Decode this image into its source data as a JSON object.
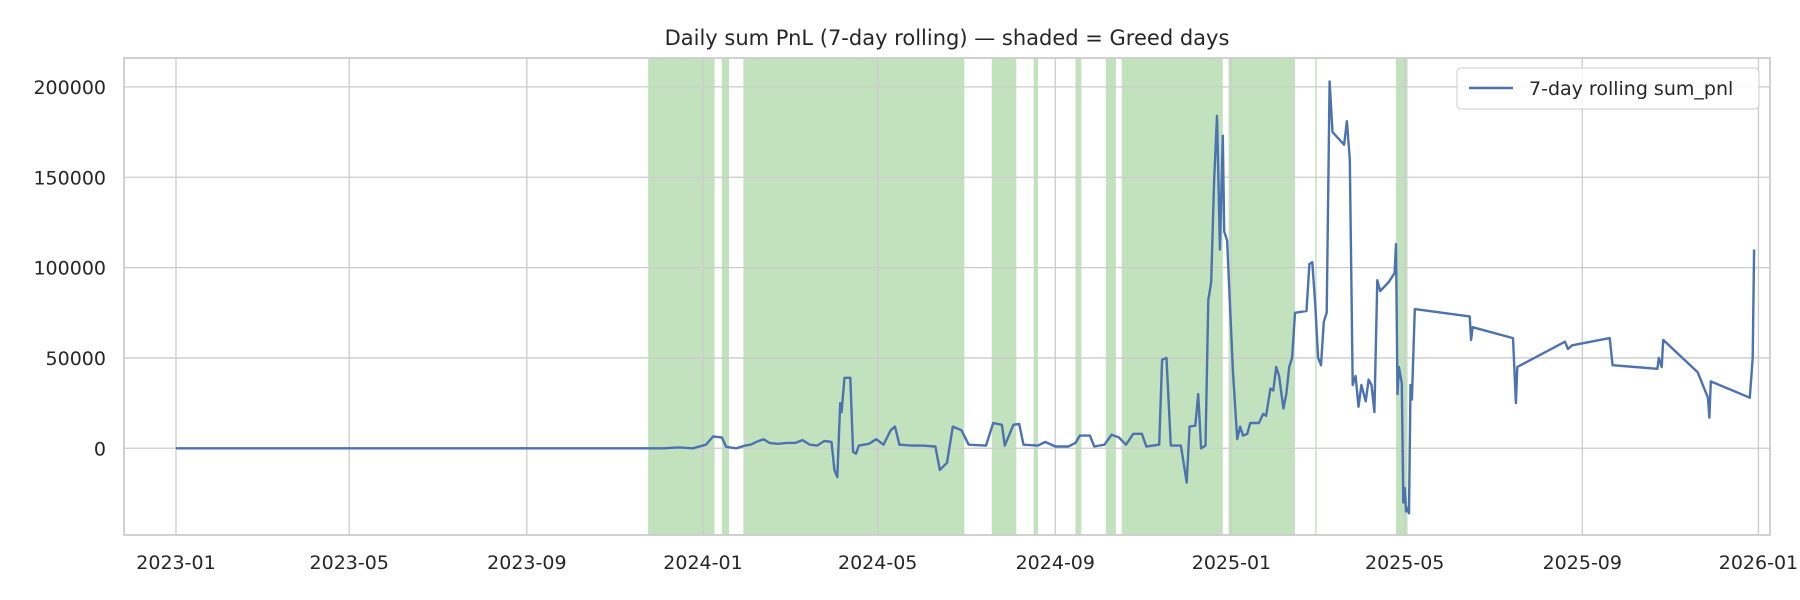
{
  "chart_data": {
    "type": "line",
    "title": "Daily sum PnL (7-day rolling) — shaded = Greed days",
    "xlabel": "",
    "ylabel": "",
    "xlim": [
      "2022-11-26",
      "2026-01-09"
    ],
    "ylim": [
      -48000,
      216000
    ],
    "x_ticks": [
      "2023-01",
      "2023-05",
      "2023-09",
      "2024-01",
      "2024-05",
      "2024-09",
      "2025-01",
      "2025-05",
      "2025-09",
      "2026-01"
    ],
    "y_ticks": [
      0,
      50000,
      100000,
      150000,
      200000
    ],
    "y_tick_labels": [
      "0",
      "50000",
      "100000",
      "150000",
      "200000"
    ],
    "grid": true,
    "legend_position": "top-right",
    "colors": {
      "line": "#4c72b0",
      "greed_shade": "#a8d5a2",
      "grid": "#cccccc",
      "spine": "#cccccc",
      "text": "#262626"
    },
    "series": [
      {
        "name": "7-day rolling sum_pnl",
        "points": [
          [
            "2023-01-01",
            0
          ],
          [
            "2023-06-01",
            0
          ],
          [
            "2023-09-15",
            0
          ],
          [
            "2023-12-05",
            0
          ],
          [
            "2023-12-15",
            500
          ],
          [
            "2023-12-25",
            0
          ],
          [
            "2024-01-03",
            2000
          ],
          [
            "2024-01-08",
            6500
          ],
          [
            "2024-01-14",
            6000
          ],
          [
            "2024-01-17",
            800
          ],
          [
            "2024-01-24",
            0
          ],
          [
            "2024-01-30",
            1500
          ],
          [
            "2024-02-03",
            2000
          ],
          [
            "2024-02-07",
            3500
          ],
          [
            "2024-02-12",
            5000
          ],
          [
            "2024-02-16",
            3000
          ],
          [
            "2024-02-22",
            2500
          ],
          [
            "2024-02-28",
            3000
          ],
          [
            "2024-03-05",
            3000
          ],
          [
            "2024-03-10",
            4500
          ],
          [
            "2024-03-15",
            2000
          ],
          [
            "2024-03-20",
            1500
          ],
          [
            "2024-03-25",
            4000
          ],
          [
            "2024-03-30",
            3500
          ],
          [
            "2024-04-01",
            -12000
          ],
          [
            "2024-04-03",
            -16000
          ],
          [
            "2024-04-05",
            25000
          ],
          [
            "2024-04-06",
            20000
          ],
          [
            "2024-04-08",
            39000
          ],
          [
            "2024-04-12",
            39000
          ],
          [
            "2024-04-14",
            -2000
          ],
          [
            "2024-04-16",
            -3000
          ],
          [
            "2024-04-18",
            1500
          ],
          [
            "2024-04-25",
            2500
          ],
          [
            "2024-04-30",
            5000
          ],
          [
            "2024-05-05",
            2000
          ],
          [
            "2024-05-10",
            10000
          ],
          [
            "2024-05-13",
            12000
          ],
          [
            "2024-05-16",
            2000
          ],
          [
            "2024-05-25",
            1500
          ],
          [
            "2024-06-01",
            1500
          ],
          [
            "2024-06-10",
            1000
          ],
          [
            "2024-06-13",
            -12000
          ],
          [
            "2024-06-18",
            -8000
          ],
          [
            "2024-06-22",
            12000
          ],
          [
            "2024-06-28",
            10000
          ],
          [
            "2024-07-03",
            2000
          ],
          [
            "2024-07-15",
            1500
          ],
          [
            "2024-07-20",
            14000
          ],
          [
            "2024-07-26",
            13000
          ],
          [
            "2024-07-28",
            1500
          ],
          [
            "2024-08-03",
            13000
          ],
          [
            "2024-08-07",
            13500
          ],
          [
            "2024-08-10",
            2000
          ],
          [
            "2024-08-20",
            1500
          ],
          [
            "2024-08-25",
            3500
          ],
          [
            "2024-09-01",
            1000
          ],
          [
            "2024-09-10",
            1000
          ],
          [
            "2024-09-15",
            3000
          ],
          [
            "2024-09-18",
            7000
          ],
          [
            "2024-09-25",
            7000
          ],
          [
            "2024-09-28",
            1000
          ],
          [
            "2024-10-05",
            2000
          ],
          [
            "2024-10-10",
            7500
          ],
          [
            "2024-10-15",
            6000
          ],
          [
            "2024-10-20",
            2000
          ],
          [
            "2024-10-25",
            8000
          ],
          [
            "2024-10-31",
            8000
          ],
          [
            "2024-11-03",
            1000
          ],
          [
            "2024-11-12",
            2000
          ],
          [
            "2024-11-14",
            49000
          ],
          [
            "2024-11-17",
            50000
          ],
          [
            "2024-11-20",
            1500
          ],
          [
            "2024-11-27",
            1500
          ],
          [
            "2024-12-01",
            -19000
          ],
          [
            "2024-12-03",
            12000
          ],
          [
            "2024-12-07",
            12500
          ],
          [
            "2024-12-09",
            30000
          ],
          [
            "2024-12-11",
            0
          ],
          [
            "2024-12-14",
            1500
          ],
          [
            "2024-12-16",
            82000
          ],
          [
            "2024-12-18",
            92000
          ],
          [
            "2024-12-20",
            148000
          ],
          [
            "2024-12-22",
            184000
          ],
          [
            "2024-12-23",
            150000
          ],
          [
            "2024-12-24",
            110000
          ],
          [
            "2024-12-25",
            140000
          ],
          [
            "2024-12-26",
            173000
          ],
          [
            "2024-12-27",
            120000
          ],
          [
            "2024-12-29",
            115000
          ],
          [
            "2025-01-02",
            43000
          ],
          [
            "2025-01-05",
            5000
          ],
          [
            "2025-01-07",
            12000
          ],
          [
            "2025-01-09",
            7000
          ],
          [
            "2025-01-12",
            8000
          ],
          [
            "2025-01-14",
            14000
          ],
          [
            "2025-01-20",
            14000
          ],
          [
            "2025-01-23",
            19000
          ],
          [
            "2025-01-25",
            18000
          ],
          [
            "2025-01-28",
            33000
          ],
          [
            "2025-01-30",
            32000
          ],
          [
            "2025-02-01",
            45000
          ],
          [
            "2025-02-03",
            40000
          ],
          [
            "2025-02-06",
            22000
          ],
          [
            "2025-02-08",
            30000
          ],
          [
            "2025-02-10",
            45000
          ],
          [
            "2025-02-12",
            50000
          ],
          [
            "2025-02-14",
            75000
          ],
          [
            "2025-02-22",
            76000
          ],
          [
            "2025-02-24",
            102000
          ],
          [
            "2025-02-26",
            103000
          ],
          [
            "2025-02-28",
            80000
          ],
          [
            "2025-03-02",
            50000
          ],
          [
            "2025-03-04",
            46000
          ],
          [
            "2025-03-06",
            70000
          ],
          [
            "2025-03-08",
            75000
          ],
          [
            "2025-03-10",
            203000
          ],
          [
            "2025-03-12",
            175000
          ],
          [
            "2025-03-20",
            168000
          ],
          [
            "2025-03-22",
            181000
          ],
          [
            "2025-03-24",
            160000
          ],
          [
            "2025-03-26",
            35000
          ],
          [
            "2025-03-28",
            40000
          ],
          [
            "2025-03-30",
            23000
          ],
          [
            "2025-04-01",
            35000
          ],
          [
            "2025-04-04",
            26000
          ],
          [
            "2025-04-06",
            38000
          ],
          [
            "2025-04-08",
            35000
          ],
          [
            "2025-04-10",
            20000
          ],
          [
            "2025-04-12",
            93000
          ],
          [
            "2025-04-14",
            87000
          ],
          [
            "2025-04-20",
            92000
          ],
          [
            "2025-04-24",
            97000
          ],
          [
            "2025-04-25",
            113000
          ],
          [
            "2025-04-26",
            30000
          ],
          [
            "2025-04-27",
            45000
          ],
          [
            "2025-04-29",
            36000
          ],
          [
            "2025-04-30",
            -30000
          ],
          [
            "2025-05-01",
            -22000
          ],
          [
            "2025-05-02",
            -35000
          ],
          [
            "2025-05-03",
            -33000
          ],
          [
            "2025-05-04",
            -36000
          ],
          [
            "2025-05-05",
            35000
          ],
          [
            "2025-05-06",
            27000
          ],
          [
            "2025-05-08",
            77000
          ],
          [
            "2025-06-15",
            73000
          ],
          [
            "2025-06-16",
            60000
          ],
          [
            "2025-06-17",
            67000
          ],
          [
            "2025-07-15",
            61000
          ],
          [
            "2025-07-17",
            25000
          ],
          [
            "2025-07-18",
            45000
          ],
          [
            "2025-08-20",
            59000
          ],
          [
            "2025-08-22",
            55000
          ],
          [
            "2025-08-25",
            57000
          ],
          [
            "2025-09-20",
            61000
          ],
          [
            "2025-09-22",
            46000
          ],
          [
            "2025-10-23",
            44000
          ],
          [
            "2025-10-24",
            50000
          ],
          [
            "2025-10-26",
            45000
          ],
          [
            "2025-10-27",
            60000
          ],
          [
            "2025-11-20",
            42000
          ],
          [
            "2025-11-27",
            28000
          ],
          [
            "2025-11-28",
            17000
          ],
          [
            "2025-11-29",
            37000
          ],
          [
            "2025-12-26",
            28000
          ],
          [
            "2025-12-28",
            50000
          ],
          [
            "2025-12-29",
            110000
          ]
        ]
      }
    ],
    "shaded_regions_label": "Greed days",
    "shaded_regions": [
      [
        "2023-11-24",
        "2024-01-09"
      ],
      [
        "2024-01-14",
        "2024-01-19"
      ],
      [
        "2024-01-29",
        "2024-06-30"
      ],
      [
        "2024-07-19",
        "2024-08-05"
      ],
      [
        "2024-08-17",
        "2024-08-20"
      ],
      [
        "2024-09-15",
        "2024-09-19"
      ],
      [
        "2024-10-06",
        "2024-10-13"
      ],
      [
        "2024-10-17",
        "2024-12-26"
      ],
      [
        "2024-12-30",
        "2025-02-14"
      ],
      [
        "2025-02-28",
        "2025-03-01"
      ],
      [
        "2025-04-25",
        "2025-05-03"
      ]
    ]
  }
}
